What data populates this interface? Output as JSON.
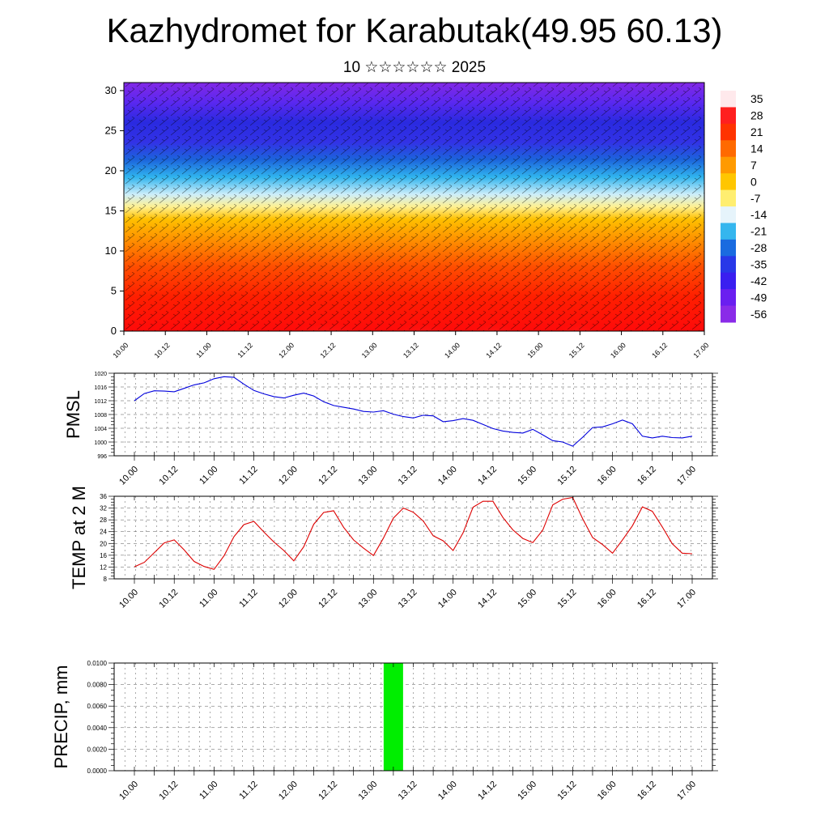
{
  "header": {
    "title": "Kazhydromet for Karabutak(49.95 60.13)",
    "subtitle": "10 ☆☆☆☆☆☆ 2025"
  },
  "chart_data": [
    {
      "type": "heatmap",
      "name": "vertical temperature cross-section with wind barbs",
      "x_tick_labels": [
        "10.00",
        "10.12",
        "11.00",
        "11.12",
        "12.00",
        "12.12",
        "13.00",
        "13.12",
        "14.00",
        "14.12",
        "15.00",
        "15.12",
        "16.00",
        "16.12",
        "17.00"
      ],
      "y_ticks": [
        0,
        5,
        10,
        15,
        20,
        25,
        30
      ],
      "ylim": [
        0,
        31
      ],
      "colorbar_labels": [
        "35",
        "28",
        "21",
        "14",
        "7",
        "0",
        "-7",
        "-14",
        "-21",
        "-28",
        "-35",
        "-42",
        "-49",
        "-56"
      ],
      "colorbar_colors": [
        "#ffe9ec",
        "#ff1f1f",
        "#ff3300",
        "#ff6a00",
        "#ff9a00",
        "#ffc600",
        "#ffee70",
        "#e6f4fb",
        "#35b6ee",
        "#1a6be0",
        "#2838e8",
        "#3a1ef0",
        "#6a1ef0",
        "#8a2be8"
      ],
      "field_description_levels": {
        "surface": "red 28-35",
        "5": "red 21-28",
        "10": "orange 7-14",
        "15": "yellow -7",
        "20": "cyan -28",
        "25": "blue -56"
      }
    },
    {
      "type": "line",
      "ylabel": "PMSL",
      "ylim": [
        996,
        1020
      ],
      "y_ticks": [
        "996",
        "1000",
        "1004",
        "1008",
        "1012",
        "1016",
        "1020"
      ],
      "x_tick_labels": [
        "10.00",
        "10.12",
        "11.00",
        "11.12",
        "12.00",
        "12.12",
        "13.00",
        "13.12",
        "14.00",
        "14.12",
        "15.00",
        "15.12",
        "16.00",
        "16.12",
        "17.00"
      ],
      "color": "#0000dd",
      "values": [
        1012.0,
        1014.1,
        1014.9,
        1014.8,
        1014.6,
        1015.6,
        1016.6,
        1017.2,
        1018.4,
        1019.0,
        1018.8,
        1016.8,
        1015.0,
        1014.0,
        1013.2,
        1012.8,
        1013.6,
        1014.2,
        1013.4,
        1011.7,
        1010.6,
        1010.1,
        1009.6,
        1008.9,
        1008.7,
        1009.1,
        1008.1,
        1007.4,
        1007.0,
        1007.8,
        1007.6,
        1005.9,
        1006.2,
        1006.8,
        1006.3,
        1005.1,
        1003.9,
        1003.2,
        1002.8,
        1002.6,
        1003.7,
        1002.1,
        1000.4,
        1000.0,
        998.8,
        1001.4,
        1004.2,
        1004.4,
        1005.3,
        1006.4,
        1005.3,
        1001.7,
        1001.2,
        1001.7,
        1001.3,
        1001.2,
        1001.7
      ]
    },
    {
      "type": "line",
      "ylabel": "TEMP at 2 M",
      "ylim": [
        8,
        36
      ],
      "y_ticks": [
        "8",
        "12",
        "16",
        "20",
        "24",
        "28",
        "32",
        "36"
      ],
      "x_tick_labels": [
        "10.00",
        "10.12",
        "11.00",
        "11.12",
        "12.00",
        "12.12",
        "13.00",
        "13.12",
        "14.00",
        "14.12",
        "15.00",
        "15.12",
        "16.00",
        "16.12",
        "17.00"
      ],
      "color": "#dd0000",
      "values": [
        12.1,
        13.6,
        16.9,
        20.2,
        21.2,
        17.8,
        13.9,
        12.2,
        11.2,
        15.8,
        22.3,
        26.4,
        27.5,
        23.9,
        20.5,
        17.6,
        14.1,
        18.9,
        26.5,
        30.5,
        31.1,
        25.5,
        21.2,
        18.4,
        15.9,
        21.8,
        28.6,
        32.0,
        30.6,
        27.6,
        22.6,
        20.9,
        17.6,
        23.6,
        32.3,
        34.3,
        34.3,
        28.8,
        24.6,
        21.7,
        20.3,
        24.5,
        33.1,
        35.0,
        35.6,
        28.4,
        22.0,
        19.6,
        16.7,
        21.2,
        26.0,
        32.4,
        30.9,
        25.6,
        19.9,
        16.7,
        16.5
      ]
    },
    {
      "type": "bar",
      "ylabel": "PRECIP, mm",
      "ylim": [
        0,
        0.01
      ],
      "y_ticks": [
        "0.0000",
        "0.0020",
        "0.0040",
        "0.0060",
        "0.0080",
        "0.0100"
      ],
      "x_tick_labels": [
        "10.00",
        "10.12",
        "11.00",
        "11.12",
        "12.00",
        "12.12",
        "13.00",
        "13.12",
        "14.00",
        "14.12",
        "15.00",
        "15.12",
        "16.00",
        "16.12",
        "17.00"
      ],
      "color": "#00ee00",
      "bars": [
        {
          "x": "13.06",
          "value": 0.01
        }
      ]
    }
  ]
}
